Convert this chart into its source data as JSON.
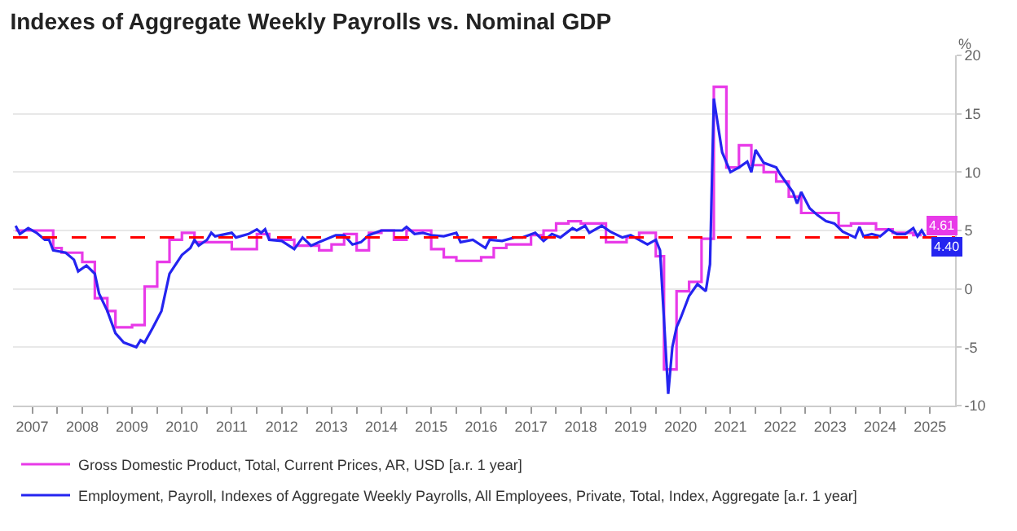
{
  "chart_data": {
    "type": "line",
    "title": "Indexes of Aggregate Weekly Payrolls vs. Nominal GDP",
    "ylabel": "%",
    "series": [
      {
        "name": "Gross Domestic Product, Total, Current Prices, AR, USD [a.r. 1 year]",
        "type": "step",
        "color": "#e83ae8",
        "x": [
          "2007-03",
          "2007-12",
          "2008-02",
          "2008-07",
          "2008-10",
          "2009-01",
          "2009-03",
          "2009-07",
          "2009-10",
          "2010-01",
          "2010-04",
          "2010-07",
          "2010-10",
          "2011-07",
          "2012-01",
          "2012-04",
          "2012-10",
          "2013-04",
          "2013-07",
          "2013-10",
          "2014-01",
          "2014-04",
          "2014-07",
          "2014-10",
          "2015-01",
          "2015-07",
          "2015-10",
          "2016-01",
          "2016-07",
          "2016-10",
          "2017-01",
          "2017-07",
          "2017-10",
          "2018-01",
          "2018-04",
          "2018-07",
          "2019-01",
          "2019-06",
          "2019-09",
          "2020-01",
          "2020-03",
          "2020-06",
          "2020-09",
          "2020-12",
          "2021-03",
          "2021-06",
          "2021-09",
          "2021-12",
          "2022-03",
          "2022-06",
          "2022-09",
          "2022-12",
          "2023-06",
          "2023-09",
          "2023-12",
          "2024-06",
          "2024-10",
          "2025-03",
          "2025-05"
        ],
        "values": [
          5.0,
          3.5,
          3.1,
          2.3,
          -0.8,
          -1.9,
          -3.3,
          -3.1,
          0.2,
          2.3,
          4.2,
          4.8,
          4.0,
          3.4,
          4.7,
          4.2,
          3.7,
          3.3,
          3.8,
          4.7,
          3.3,
          4.8,
          5.0,
          4.2,
          5.0,
          3.4,
          2.7,
          2.4,
          2.7,
          3.5,
          3.8,
          4.6,
          5.0,
          5.6,
          5.8,
          5.6,
          4.0,
          4.4,
          4.8,
          2.8,
          -6.9,
          -0.2,
          0.6,
          4.3,
          17.3,
          10.4,
          12.3,
          10.6,
          10.0,
          9.2,
          7.9,
          6.5,
          6.5,
          5.4,
          5.6,
          5.1,
          4.8,
          4.61,
          4.61
        ],
        "value_labels": [
          null,
          null,
          null,
          null,
          null,
          null,
          null,
          null,
          null,
          null,
          null,
          null,
          null,
          null,
          null,
          null,
          null,
          null,
          null,
          null,
          null,
          null,
          null,
          null,
          null,
          null,
          null,
          null,
          null,
          null,
          null,
          null,
          null,
          null,
          null,
          null,
          null,
          null,
          null,
          null,
          null,
          null,
          null,
          null,
          null,
          null,
          null,
          null,
          null,
          null,
          null,
          null,
          null,
          null,
          null,
          null,
          null,
          null,
          "4.61"
        ]
      },
      {
        "name": "Employment, Payroll, Indexes of Aggregate Weekly Payrolls, All Employees, Private, Total, Index, Aggregate [a.r. 1 year]",
        "type": "line",
        "color": "#2424f0",
        "x": [
          "2007-03",
          "2007-04",
          "2007-06",
          "2007-08",
          "2007-10",
          "2007-11",
          "2007-12",
          "2008-03",
          "2008-05",
          "2008-06",
          "2008-08",
          "2008-10",
          "2008-11",
          "2009-01",
          "2009-03",
          "2009-05",
          "2009-08",
          "2009-09",
          "2009-10",
          "2009-12",
          "2010-02",
          "2010-04",
          "2010-07",
          "2010-09",
          "2010-10",
          "2010-11",
          "2011-01",
          "2011-02",
          "2011-03",
          "2011-07",
          "2011-08",
          "2011-11",
          "2012-01",
          "2012-02",
          "2012-03",
          "2012-04",
          "2012-07",
          "2012-10",
          "2012-12",
          "2013-02",
          "2013-04",
          "2013-08",
          "2013-10",
          "2013-12",
          "2014-02",
          "2014-04",
          "2014-07",
          "2014-12",
          "2015-01",
          "2015-03",
          "2015-05",
          "2015-07",
          "2015-10",
          "2016-01",
          "2016-02",
          "2016-05",
          "2016-08",
          "2016-09",
          "2016-12",
          "2017-03",
          "2017-05",
          "2017-08",
          "2017-10",
          "2017-12",
          "2018-02",
          "2018-05",
          "2018-06",
          "2018-08",
          "2018-09",
          "2018-12",
          "2019-02",
          "2019-05",
          "2019-07",
          "2019-08",
          "2019-11",
          "2020-01",
          "2020-02",
          "2020-04",
          "2020-05",
          "2020-06",
          "2020-07",
          "2020-09",
          "2020-11",
          "2021-01",
          "2021-02",
          "2021-03",
          "2021-05",
          "2021-07",
          "2021-09",
          "2021-11",
          "2021-12",
          "2022-01",
          "2022-03",
          "2022-06",
          "2022-07",
          "2022-10",
          "2022-11",
          "2022-12",
          "2023-02",
          "2023-04",
          "2023-06",
          "2023-08",
          "2023-10",
          "2024-01",
          "2024-02",
          "2024-03",
          "2024-05",
          "2024-07",
          "2024-09",
          "2024-11",
          "2025-01",
          "2025-03",
          "2025-04",
          "2025-05",
          "2025-06"
        ],
        "values": [
          5.4,
          4.7,
          5.2,
          4.8,
          4.2,
          4.2,
          3.3,
          3.1,
          2.5,
          1.5,
          2.0,
          1.3,
          -0.4,
          -1.9,
          -3.8,
          -4.6,
          -5.0,
          -4.4,
          -4.6,
          -3.3,
          -1.9,
          1.3,
          2.9,
          3.5,
          4.2,
          3.7,
          4.2,
          4.8,
          4.5,
          4.8,
          4.4,
          4.7,
          5.1,
          4.8,
          5.1,
          4.2,
          4.1,
          3.4,
          4.4,
          3.7,
          4.0,
          4.6,
          4.6,
          3.8,
          4.0,
          4.6,
          5.0,
          5.0,
          5.3,
          4.7,
          4.8,
          4.6,
          4.5,
          4.8,
          4.0,
          4.2,
          3.5,
          4.2,
          4.1,
          4.4,
          4.4,
          4.8,
          4.1,
          4.7,
          4.4,
          5.2,
          5.0,
          5.4,
          4.8,
          5.4,
          4.9,
          4.4,
          4.6,
          4.4,
          3.8,
          4.2,
          3.3,
          -9.0,
          -5.0,
          -3.3,
          -2.5,
          -0.6,
          0.4,
          -0.2,
          2.1,
          16.3,
          11.7,
          10.0,
          10.4,
          10.9,
          10.0,
          11.9,
          10.8,
          10.4,
          9.8,
          8.3,
          7.3,
          8.3,
          6.9,
          6.3,
          5.8,
          5.6,
          4.9,
          4.4,
          5.3,
          4.5,
          4.7,
          4.5,
          5.1,
          4.7,
          4.7,
          5.2,
          4.5,
          5.0,
          4.4
        ],
        "value_labels": [
          null,
          null,
          null,
          null,
          null,
          null,
          null,
          null,
          null,
          null,
          null,
          null,
          null,
          null,
          null,
          null,
          null,
          null,
          null,
          null,
          null,
          null,
          null,
          null,
          null,
          null,
          null,
          null,
          null,
          null,
          null,
          null,
          null,
          null,
          null,
          null,
          null,
          null,
          null,
          null,
          null,
          null,
          null,
          null,
          null,
          null,
          null,
          null,
          null,
          null,
          null,
          null,
          null,
          null,
          null,
          null,
          null,
          null,
          null,
          null,
          null,
          null,
          null,
          null,
          null,
          null,
          null,
          null,
          null,
          null,
          null,
          null,
          null,
          null,
          null,
          null,
          null,
          null,
          null,
          null,
          null,
          null,
          null,
          null,
          null,
          null,
          null,
          null,
          null,
          null,
          null,
          null,
          null,
          null,
          null,
          null,
          null,
          null,
          null,
          null,
          null,
          null,
          null,
          null,
          null,
          null,
          null,
          null,
          null,
          null,
          null,
          null,
          null,
          null,
          "4.40"
        ]
      }
    ],
    "ref_lines": [
      {
        "axis": "y",
        "value": 4.4,
        "color": "#ff0000",
        "line_style": "dashed"
      }
    ],
    "xlim": [
      "2007-02-10",
      "2026-01-01"
    ],
    "xticks": [
      {
        "value": "2007-07-01",
        "label": "2007"
      },
      {
        "value": "2008-01-01",
        "label": null
      },
      {
        "value": "2008-07-01",
        "label": "2008"
      },
      {
        "value": "2009-01-01",
        "label": null
      },
      {
        "value": "2009-07-01",
        "label": "2009"
      },
      {
        "value": "2010-01-01",
        "label": null
      },
      {
        "value": "2010-07-01",
        "label": "2010"
      },
      {
        "value": "2011-01-01",
        "label": null
      },
      {
        "value": "2011-07-01",
        "label": "2011"
      },
      {
        "value": "2012-01-01",
        "label": null
      },
      {
        "value": "2012-07-01",
        "label": "2012"
      },
      {
        "value": "2013-01-01",
        "label": null
      },
      {
        "value": "2013-07-01",
        "label": "2013"
      },
      {
        "value": "2014-01-01",
        "label": null
      },
      {
        "value": "2014-07-01",
        "label": "2014"
      },
      {
        "value": "2015-01-01",
        "label": null
      },
      {
        "value": "2015-07-01",
        "label": "2015"
      },
      {
        "value": "2016-01-01",
        "label": null
      },
      {
        "value": "2016-07-01",
        "label": "2016"
      },
      {
        "value": "2017-01-01",
        "label": null
      },
      {
        "value": "2017-07-01",
        "label": "2017"
      },
      {
        "value": "2018-01-01",
        "label": null
      },
      {
        "value": "2018-07-01",
        "label": "2018"
      },
      {
        "value": "2019-01-01",
        "label": null
      },
      {
        "value": "2019-07-01",
        "label": "2019"
      },
      {
        "value": "2020-01-01",
        "label": null
      },
      {
        "value": "2020-07-01",
        "label": "2020"
      },
      {
        "value": "2021-01-01",
        "label": null
      },
      {
        "value": "2021-07-01",
        "label": "2021"
      },
      {
        "value": "2022-01-01",
        "label": null
      },
      {
        "value": "2022-07-01",
        "label": "2022"
      },
      {
        "value": "2023-01-01",
        "label": null
      },
      {
        "value": "2023-07-01",
        "label": "2023"
      },
      {
        "value": "2024-01-01",
        "label": null
      },
      {
        "value": "2024-07-01",
        "label": "2024"
      },
      {
        "value": "2025-01-01",
        "label": null
      },
      {
        "value": "2025-07-01",
        "label": "2025"
      }
    ],
    "ylim": [
      -10,
      20
    ],
    "yticks": [
      -10,
      -5,
      0,
      5,
      10,
      15,
      20
    ],
    "grid": "y",
    "legend": "bottom"
  }
}
